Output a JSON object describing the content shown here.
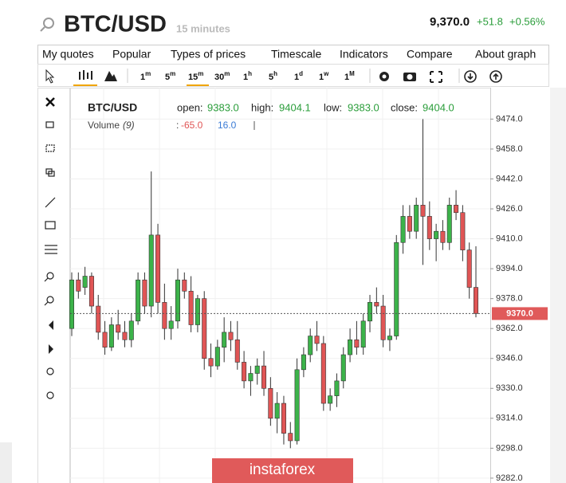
{
  "header": {
    "symbol": "BTC/USD",
    "interval": "15 minutes",
    "price": "9,370.0",
    "change": "+51.8",
    "change_pct": "+0.56%"
  },
  "menu": [
    "My quotes",
    "Popular",
    "Types of prices",
    "Timescale",
    "Indicators",
    "Compare",
    "About graph"
  ],
  "timeframes": [
    {
      "num": "1",
      "unit": "m"
    },
    {
      "num": "5",
      "unit": "m"
    },
    {
      "num": "15",
      "unit": "m"
    },
    {
      "num": "30",
      "unit": "m"
    },
    {
      "num": "1",
      "unit": "h"
    },
    {
      "num": "5",
      "unit": "h"
    },
    {
      "num": "1",
      "unit": "d"
    },
    {
      "num": "1",
      "unit": "w"
    },
    {
      "num": "1",
      "unit": "M"
    }
  ],
  "legend": {
    "symbol": "BTC/USD",
    "open_label": "open:",
    "open": "9383.0",
    "high_label": "high:",
    "high": "9404.1",
    "low_label": "low:",
    "low": "9383.0",
    "close_label": "close:",
    "close": "9404.0",
    "volume_label": "Volume",
    "volume_period": "(9)",
    "volume_sep": ":",
    "volume_a": "-65.0",
    "volume_b": "16.0"
  },
  "watermark": "instaforex",
  "chart_data": {
    "type": "candlestick",
    "up_color": "#3cb34a",
    "down_color": "#e05555",
    "open": [
      9362,
      9388,
      9384,
      9390,
      9374,
      9360,
      9352,
      9364,
      9360,
      9356,
      9366,
      9388,
      9374,
      9412,
      9376,
      9362,
      9366,
      9388,
      9382,
      9364,
      9378,
      9346,
      9342,
      9352,
      9360,
      9356,
      9344,
      9334,
      9338,
      9342,
      9330,
      9314,
      9322,
      9306,
      9302,
      9340,
      9348,
      9358,
      9354,
      9322,
      9326,
      9334,
      9348,
      9356,
      9352,
      9366,
      9376,
      9374,
      9356,
      9358,
      9408,
      9422,
      9414,
      9428,
      9422,
      9410,
      9414,
      9408,
      9428,
      9424,
      9404,
      9384
    ],
    "high": [
      9392,
      9392,
      9395,
      9392,
      9380,
      9366,
      9368,
      9372,
      9366,
      9370,
      9392,
      9392,
      9446,
      9418,
      9386,
      9374,
      9394,
      9392,
      9390,
      9380,
      9382,
      9354,
      9356,
      9368,
      9366,
      9366,
      9350,
      9342,
      9346,
      9350,
      9336,
      9328,
      9326,
      9312,
      9346,
      9352,
      9362,
      9366,
      9358,
      9330,
      9338,
      9352,
      9362,
      9366,
      9370,
      9380,
      9384,
      9380,
      9362,
      9412,
      9428,
      9428,
      9432,
      9474,
      9430,
      9418,
      9420,
      9432,
      9436,
      9428,
      9408,
      9406
    ],
    "low": [
      9358,
      9378,
      9380,
      9370,
      9356,
      9348,
      9350,
      9356,
      9352,
      9352,
      9364,
      9370,
      9368,
      9370,
      9356,
      9356,
      9362,
      9378,
      9360,
      9360,
      9340,
      9336,
      9340,
      9344,
      9350,
      9340,
      9330,
      9326,
      9332,
      9326,
      9310,
      9306,
      9300,
      9298,
      9300,
      9336,
      9344,
      9350,
      9318,
      9318,
      9320,
      9330,
      9344,
      9348,
      9348,
      9360,
      9370,
      9352,
      9350,
      9356,
      9402,
      9410,
      9410,
      9396,
      9404,
      9398,
      9404,
      9404,
      9420,
      9398,
      9378,
      9368
    ],
    "close": [
      9388,
      9382,
      9390,
      9374,
      9360,
      9352,
      9364,
      9360,
      9356,
      9366,
      9388,
      9374,
      9412,
      9376,
      9362,
      9366,
      9388,
      9382,
      9364,
      9378,
      9346,
      9342,
      9352,
      9360,
      9356,
      9344,
      9334,
      9338,
      9342,
      9330,
      9314,
      9322,
      9306,
      9302,
      9340,
      9348,
      9358,
      9354,
      9322,
      9326,
      9334,
      9348,
      9356,
      9352,
      9366,
      9376,
      9374,
      9356,
      9358,
      9408,
      9422,
      9414,
      9428,
      9422,
      9410,
      9414,
      9408,
      9428,
      9424,
      9404,
      9384,
      9370
    ],
    "ylim": [
      9279.4,
      9490.8
    ],
    "yticks": [
      {
        "value": 9474,
        "label": "9474.0"
      },
      {
        "value": 9458,
        "label": "9458.0"
      },
      {
        "value": 9442,
        "label": "9442.0"
      },
      {
        "value": 9426,
        "label": "9426.0"
      },
      {
        "value": 9410,
        "label": "9410.0"
      },
      {
        "value": 9394,
        "label": "9394.0"
      },
      {
        "value": 9378,
        "label": "9378.0"
      },
      {
        "value": 9362,
        "label": "9362.0"
      },
      {
        "value": 9346,
        "label": "9346.0"
      },
      {
        "value": 9330,
        "label": "9330.0"
      },
      {
        "value": 9314,
        "label": "9314.0"
      },
      {
        "value": 9298,
        "label": "9298.0"
      },
      {
        "value": 9282,
        "label": "9282.0"
      }
    ],
    "last_price": {
      "value": 9370,
      "label": "9370.0"
    },
    "grid": true
  }
}
